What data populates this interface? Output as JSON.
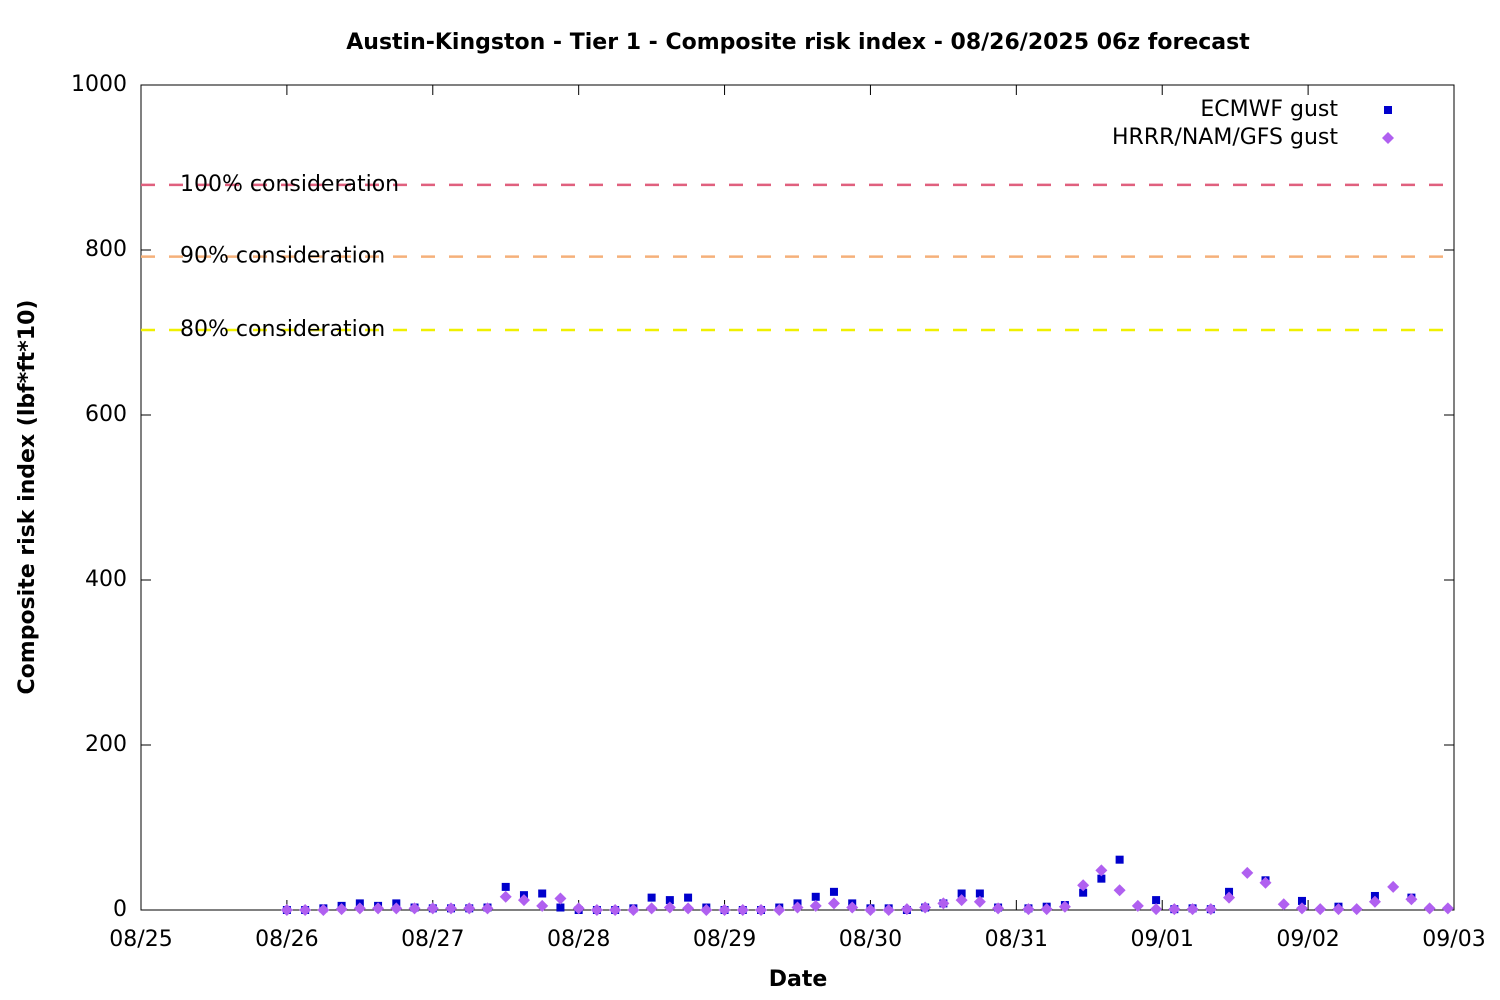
{
  "chart_data": {
    "type": "scatter",
    "title": "Austin-Kingston - Tier 1 - Composite risk index - 08/26/2025 06z forecast",
    "x_label": "Date",
    "y_label": "Composite risk index (lbf*ft*10)",
    "xlim": [
      0,
      9
    ],
    "xticks": [
      {
        "value": 0,
        "label": "08/25"
      },
      {
        "value": 1,
        "label": "08/26"
      },
      {
        "value": 2,
        "label": "08/27"
      },
      {
        "value": 3,
        "label": "08/28"
      },
      {
        "value": 4,
        "label": "08/29"
      },
      {
        "value": 5,
        "label": "08/30"
      },
      {
        "value": 6,
        "label": "08/31"
      },
      {
        "value": 7,
        "label": "09/01"
      },
      {
        "value": 8,
        "label": "09/02"
      },
      {
        "value": 9,
        "label": "09/03"
      }
    ],
    "ylim": [
      0,
      1000
    ],
    "yticks": [
      0,
      200,
      400,
      600,
      800,
      1000
    ],
    "grid": false,
    "legend": "top-right",
    "hlines": [
      {
        "label": "100% consideration",
        "value": 879,
        "color": "#e0607e"
      },
      {
        "label": "90% consideration",
        "value": 792,
        "color": "#f5b07a"
      },
      {
        "label": "80% consideration",
        "value": 703,
        "color": "#f0f000"
      }
    ],
    "series": [
      {
        "name": "ECMWF gust",
        "color": "#0000cc",
        "marker": "square",
        "x": [
          1,
          1.125,
          1.25,
          1.375,
          1.5,
          1.625,
          1.75,
          1.875,
          2,
          2.125,
          2.25,
          2.375,
          2.5,
          2.625,
          2.75,
          2.875,
          3,
          3.125,
          3.25,
          3.375,
          3.5,
          3.625,
          3.75,
          3.875,
          4,
          4.125,
          4.25,
          4.375,
          4.5,
          4.625,
          4.75,
          4.875,
          5,
          5.125,
          5.25,
          5.375,
          5.5,
          5.625,
          5.75,
          5.875,
          6.083,
          6.208,
          6.333,
          6.458,
          6.583,
          6.708,
          6.958,
          7.083,
          7.208,
          7.333,
          7.458,
          7.708,
          7.958,
          8.208,
          8.458,
          8.708
        ],
        "values": [
          0,
          0,
          2,
          5,
          8,
          5,
          8,
          3,
          2,
          2,
          2,
          3,
          28,
          18,
          20,
          3,
          0,
          0,
          0,
          2,
          15,
          12,
          15,
          3,
          0,
          0,
          0,
          3,
          8,
          16,
          22,
          8,
          2,
          2,
          0,
          3,
          8,
          20,
          20,
          3,
          2,
          4,
          6,
          21,
          38,
          61,
          12,
          1,
          2,
          1,
          22,
          36,
          11,
          4,
          17,
          15
        ]
      },
      {
        "name": "HRRR/NAM/GFS gust",
        "color": "#b060f0",
        "marker": "diamond",
        "x": [
          1,
          1.125,
          1.25,
          1.375,
          1.5,
          1.625,
          1.75,
          1.875,
          2,
          2.125,
          2.25,
          2.375,
          2.5,
          2.625,
          2.75,
          2.875,
          3,
          3.125,
          3.25,
          3.375,
          3.5,
          3.625,
          3.75,
          3.875,
          4,
          4.125,
          4.25,
          4.375,
          4.5,
          4.625,
          4.75,
          4.875,
          5,
          5.125,
          5.25,
          5.375,
          5.5,
          5.625,
          5.75,
          5.875,
          6.083,
          6.208,
          6.333,
          6.458,
          6.583,
          6.708,
          6.833,
          6.958,
          7.083,
          7.208,
          7.333,
          7.458,
          7.583,
          7.708,
          7.833,
          7.958,
          8.083,
          8.208,
          8.333,
          8.458,
          8.583,
          8.708,
          8.833,
          8.958
        ],
        "values": [
          0,
          0,
          0,
          1,
          2,
          2,
          2,
          2,
          2,
          2,
          2,
          2,
          16,
          12,
          5,
          14,
          2,
          0,
          0,
          0,
          2,
          3,
          2,
          0,
          0,
          0,
          0,
          0,
          3,
          5,
          8,
          3,
          0,
          0,
          1,
          3,
          8,
          12,
          10,
          2,
          1,
          1,
          4,
          30,
          48,
          24,
          5,
          1,
          1,
          1,
          1,
          15,
          45,
          33,
          7,
          2,
          1,
          1,
          1,
          10,
          28,
          13,
          2,
          2
        ]
      }
    ]
  }
}
